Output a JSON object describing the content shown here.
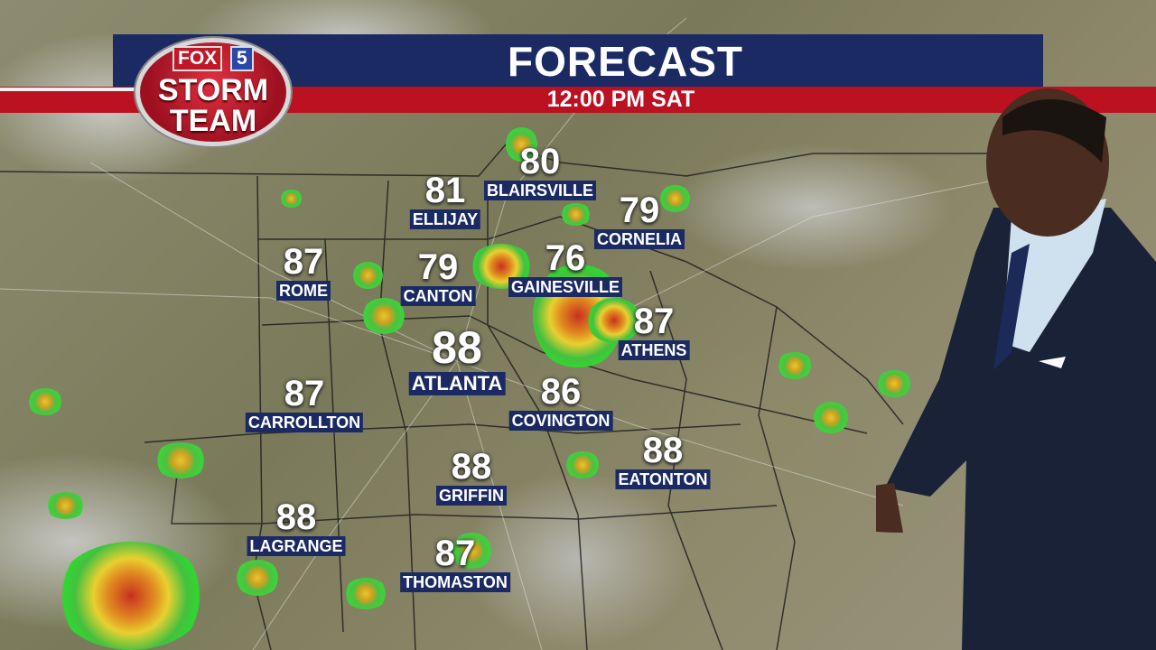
{
  "header": {
    "title": "FORECAST",
    "subtitle": "12:00 PM SAT"
  },
  "logo": {
    "fox": "FOX",
    "channel": "5",
    "line1": "STORM",
    "line2": "TEAM"
  },
  "colors": {
    "header_blue": "#1c2a64",
    "header_red": "#bb1120"
  },
  "cities": [
    {
      "name": "BLAIRSVILLE",
      "temp": "80"
    },
    {
      "name": "ELLIJAY",
      "temp": "81"
    },
    {
      "name": "CORNELIA",
      "temp": "79"
    },
    {
      "name": "ROME",
      "temp": "87"
    },
    {
      "name": "CANTON",
      "temp": "79"
    },
    {
      "name": "GAINESVILLE",
      "temp": "76"
    },
    {
      "name": "ATHENS",
      "temp": "87"
    },
    {
      "name": "ATLANTA",
      "temp": "88"
    },
    {
      "name": "CARROLLTON",
      "temp": "87"
    },
    {
      "name": "COVINGTON",
      "temp": "86"
    },
    {
      "name": "EATONTON",
      "temp": "88"
    },
    {
      "name": "GRIFFIN",
      "temp": "88"
    },
    {
      "name": "LAGRANGE",
      "temp": "88"
    },
    {
      "name": "THOMASTON",
      "temp": "87"
    }
  ]
}
